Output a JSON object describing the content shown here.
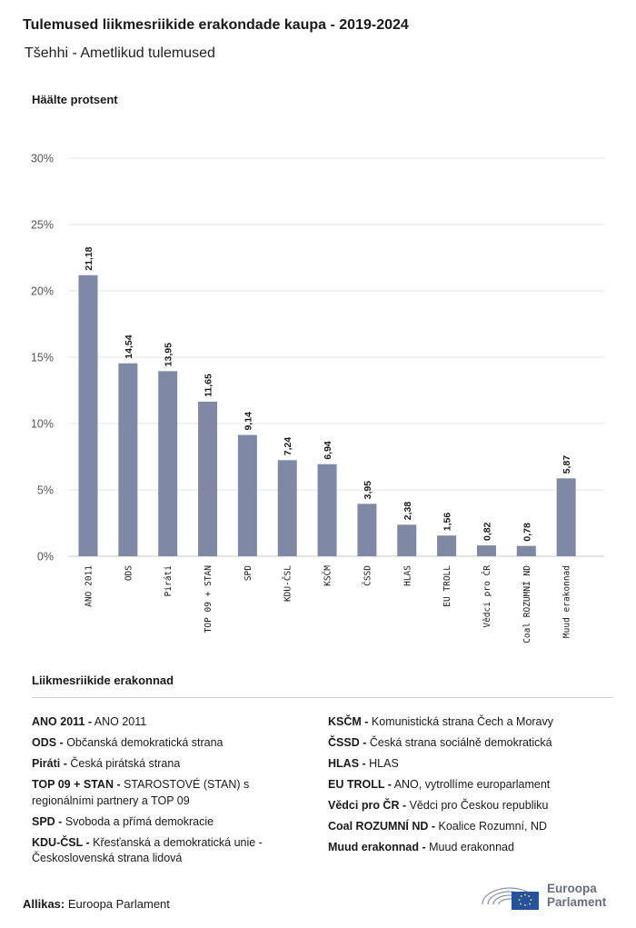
{
  "title": "Tulemused liikmesriikide erakondade kaupa - 2019-2024",
  "subtitle": "Tšehhi - Ametlikud tulemused",
  "chart_data": {
    "type": "bar",
    "ylabel": "Häälte protsent",
    "ylim": [
      0,
      30
    ],
    "yticks": [
      "0%",
      "5%",
      "10%",
      "15%",
      "20%",
      "25%",
      "30%"
    ],
    "ytick_values": [
      0,
      5,
      10,
      15,
      20,
      25,
      30
    ],
    "grid": true,
    "bar_color": "#7f89a5",
    "categories": [
      "ANO 2011",
      "ODS",
      "Piráti",
      "TOP 09 + STAN",
      "SPD",
      "KDU-ČSL",
      "KSČM",
      "ČSSD",
      "HLAS",
      "EU TROLL",
      "Vědci pro ČR",
      "Coal ROZUMNÍ ND",
      "Muud erakonnad"
    ],
    "values": [
      21.18,
      14.54,
      13.95,
      11.65,
      9.14,
      7.24,
      6.94,
      3.95,
      2.38,
      1.56,
      0.82,
      0.78,
      5.87
    ],
    "value_labels": [
      "21,18",
      "14,54",
      "13,95",
      "11,65",
      "9,14",
      "7,24",
      "6,94",
      "3,95",
      "2,38",
      "1,56",
      "0,82",
      "0,78",
      "5,87"
    ]
  },
  "legend": {
    "title": "Liikmesriikide erakonnad",
    "left": [
      {
        "abbr": "ANO 2011 -",
        "name": "ANO 2011"
      },
      {
        "abbr": "ODS -",
        "name": "Občanská demokratická strana"
      },
      {
        "abbr": "Piráti -",
        "name": "Česká pirátská strana"
      },
      {
        "abbr": "TOP 09 + STAN -",
        "name": "STAROSTOVÉ (STAN) s regionálními partnery a TOP 09"
      },
      {
        "abbr": "SPD -",
        "name": "Svoboda a přímá demokracie"
      },
      {
        "abbr": "KDU-ČSL -",
        "name": "Křesťanská a demokratická unie - Československá strana lidová"
      }
    ],
    "right": [
      {
        "abbr": "KSČM -",
        "name": "Komunistická strana Čech a Moravy"
      },
      {
        "abbr": "ČSSD -",
        "name": "Česká strana sociálně demokratická"
      },
      {
        "abbr": "HLAS -",
        "name": "HLAS"
      },
      {
        "abbr": "EU TROLL -",
        "name": "ANO, vytrollíme europarlament"
      },
      {
        "abbr": "Vědci pro ČR -",
        "name": "Vědci pro Českou republiku"
      },
      {
        "abbr": "Coal ROZUMNÍ ND -",
        "name": "Koalice Rozumní, ND"
      },
      {
        "abbr": "Muud erakonnad -",
        "name": "Muud erakonnad"
      }
    ]
  },
  "source": {
    "label": "Allikas:",
    "value": "Euroopa Parlament"
  },
  "logo": {
    "line1": "Euroopa",
    "line2": "Parlament"
  }
}
